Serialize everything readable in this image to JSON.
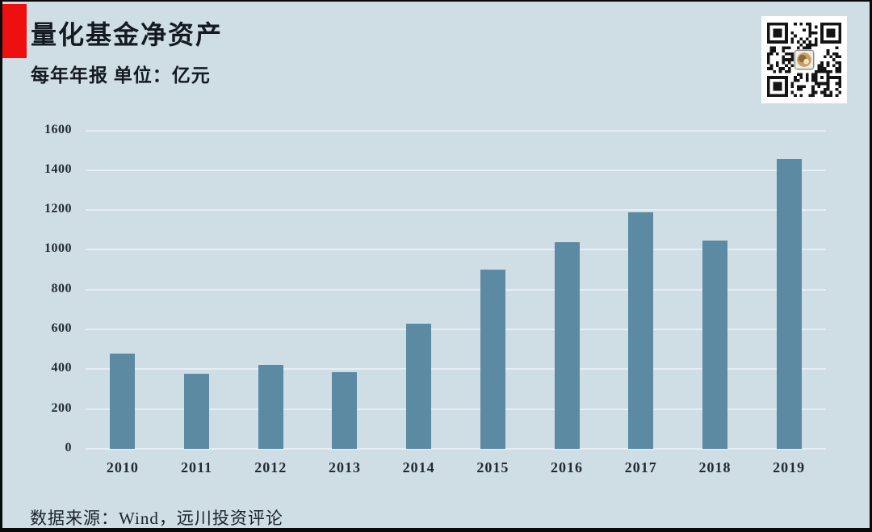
{
  "page": {
    "title": "量化基金净资产",
    "subtitle": "每年年报  单位：亿元",
    "source": "数据来源：Wind，远川投资评论"
  },
  "chart_data": {
    "type": "bar",
    "title": "量化基金净资产",
    "subtitle": "每年年报",
    "unit": "亿元",
    "categories": [
      "2010",
      "2011",
      "2012",
      "2013",
      "2014",
      "2015",
      "2016",
      "2017",
      "2018",
      "2019"
    ],
    "values": [
      480,
      378,
      422,
      386,
      630,
      900,
      1040,
      1190,
      1045,
      1455
    ],
    "xlabel": "",
    "ylabel": "",
    "ylim": [
      0,
      1600
    ],
    "yticks": [
      0,
      200,
      400,
      600,
      800,
      1000,
      1200,
      1400,
      1600
    ],
    "grid": "horizontal",
    "legend": "none",
    "source": "Wind，远川投资评论"
  },
  "icons": {
    "qr_code": "qr-code"
  },
  "colors": {
    "background": "#cfdde5",
    "bar": "#5b8aa2",
    "gridline": "#e7eef3",
    "text_dark": "#141a21",
    "axis_text": "#222b33",
    "accent_red": "#ee1010",
    "frame": "#0a0a0a",
    "qr_black": "#141414",
    "qr_logo_gold": "#c9a063"
  }
}
